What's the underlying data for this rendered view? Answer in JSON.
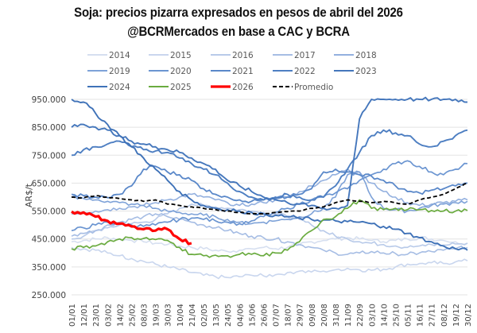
{
  "chart_data": {
    "type": "line",
    "title": "Soja: precios pizarra  expresados en pesos de abril del 2026",
    "subtitle": "@BCRMercados en base a CAC y BCRA",
    "xlabel": "",
    "ylabel": "AR$/t",
    "ylim": [
      250000,
      950000
    ],
    "yticks": [
      250000,
      350000,
      450000,
      550000,
      650000,
      750000,
      850000,
      950000
    ],
    "ytick_labels": [
      "250.000",
      "350.000",
      "450.000",
      "550.000",
      "650.000",
      "750.000",
      "850.000",
      "950.000"
    ],
    "grid": true,
    "legend_position": "top",
    "categories": [
      "01/01",
      "12/01",
      "23/01",
      "03/02",
      "14/02",
      "25/02",
      "08/03",
      "19/03",
      "30/03",
      "10/04",
      "21/04",
      "02/05",
      "13/05",
      "24/05",
      "04/06",
      "15/06",
      "26/06",
      "07/07",
      "18/07",
      "29/07",
      "09/08",
      "20/08",
      "31/08",
      "11/09",
      "22/09",
      "03/10",
      "14/10",
      "25/10",
      "05/11",
      "16/11",
      "27/11",
      "08/12",
      "19/12",
      "30/12"
    ],
    "series": [
      {
        "name": "2014",
        "color": "#d6dff0",
        "width": 1.6,
        "dash": "",
        "values": [
          440000,
          445000,
          450000,
          455000,
          450000,
          445000,
          440000,
          435000,
          430000,
          425000,
          420000,
          415000,
          410000,
          405000,
          410000,
          415000,
          420000,
          415000,
          420000,
          430000,
          440000,
          445000,
          450000,
          455000,
          450000,
          445000,
          440000,
          445000,
          450000,
          455000,
          450000,
          445000,
          440000,
          435000
        ]
      },
      {
        "name": "2015",
        "color": "#c9d6ee",
        "width": 1.6,
        "dash": "",
        "values": [
          420000,
          415000,
          410000,
          400000,
          390000,
          380000,
          370000,
          360000,
          350000,
          340000,
          330000,
          320000,
          315000,
          312000,
          315000,
          320000,
          318000,
          322000,
          330000,
          335000,
          332000,
          335000,
          340000,
          345000,
          340000,
          338000,
          342000,
          350000,
          360000,
          362000,
          365000,
          362000,
          368000,
          372000
        ]
      },
      {
        "name": "2016",
        "color": "#b8cae9",
        "width": 1.6,
        "dash": "",
        "values": [
          450000,
          460000,
          480000,
          490000,
          500000,
          505000,
          510000,
          520000,
          540000,
          560000,
          575000,
          570000,
          565000,
          560000,
          555000,
          550000,
          545000,
          540000,
          530000,
          520000,
          500000,
          480000,
          460000,
          450000,
          440000,
          435000,
          430000,
          425000,
          420000,
          425000,
          430000,
          428000,
          432000,
          435000
        ]
      },
      {
        "name": "2017",
        "color": "#a6bde4",
        "width": 1.6,
        "dash": "",
        "values": [
          460000,
          470000,
          480000,
          500000,
          510000,
          520000,
          530000,
          540000,
          530000,
          520000,
          510000,
          500000,
          490000,
          480000,
          470000,
          460000,
          455000,
          450000,
          440000,
          430000,
          420000,
          410000,
          400000,
          395000,
          400000,
          405000,
          400000,
          398000,
          395000,
          400000,
          405000,
          410000,
          415000,
          420000
        ]
      },
      {
        "name": "2018",
        "color": "#93b0df",
        "width": 1.6,
        "dash": "",
        "values": [
          540000,
          545000,
          550000,
          555000,
          560000,
          565000,
          570000,
          580000,
          590000,
          600000,
          610000,
          600000,
          590000,
          580000,
          570000,
          575000,
          580000,
          590000,
          600000,
          620000,
          640000,
          660000,
          680000,
          700000,
          690000,
          650000,
          620000,
          600000,
          580000,
          570000,
          575000,
          580000,
          585000,
          590000
        ]
      },
      {
        "name": "2019",
        "color": "#7ea2d8",
        "width": 1.6,
        "dash": "",
        "values": [
          600000,
          595000,
          590000,
          585000,
          580000,
          575000,
          570000,
          560000,
          550000,
          545000,
          540000,
          535000,
          530000,
          520000,
          510000,
          505000,
          510000,
          515000,
          520000,
          530000,
          540000,
          560000,
          600000,
          680000,
          690000,
          600000,
          560000,
          555000,
          550000,
          560000,
          570000,
          575000,
          580000,
          585000
        ]
      },
      {
        "name": "2020",
        "color": "#6b95d1",
        "width": 1.7,
        "dash": "",
        "values": [
          480000,
          490000,
          500000,
          510000,
          505000,
          500000,
          495000,
          500000,
          510000,
          520000,
          525000,
          520000,
          515000,
          510000,
          505000,
          515000,
          530000,
          545000,
          560000,
          575000,
          590000,
          600000,
          615000,
          630000,
          660000,
          680000,
          700000,
          720000,
          730000,
          710000,
          690000,
          680000,
          700000,
          720000
        ]
      },
      {
        "name": "2021",
        "color": "#5a88c9",
        "width": 1.8,
        "dash": "",
        "values": [
          610000,
          605000,
          600000,
          598000,
          610000,
          640000,
          700000,
          710000,
          690000,
          680000,
          660000,
          630000,
          610000,
          600000,
          590000,
          585000,
          590000,
          595000,
          600000,
          610000,
          630000,
          690000,
          700000,
          690000,
          680000,
          675000,
          660000,
          640000,
          620000,
          615000,
          625000,
          630000,
          640000,
          650000
        ]
      },
      {
        "name": "2022",
        "color": "#4e7fc2",
        "width": 1.9,
        "dash": "",
        "values": [
          750000,
          770000,
          780000,
          790000,
          800000,
          780000,
          770000,
          765000,
          760000,
          740000,
          720000,
          700000,
          680000,
          650000,
          620000,
          600000,
          590000,
          600000,
          610000,
          600000,
          590000,
          600000,
          640000,
          700000,
          760000,
          820000,
          840000,
          830000,
          820000,
          790000,
          780000,
          800000,
          820000,
          840000
        ]
      },
      {
        "name": "2023",
        "color": "#4577bc",
        "width": 1.9,
        "dash": "",
        "values": [
          850000,
          860000,
          850000,
          840000,
          820000,
          800000,
          790000,
          780000,
          770000,
          760000,
          740000,
          720000,
          700000,
          660000,
          640000,
          620000,
          600000,
          590000,
          580000,
          575000,
          570000,
          560000,
          560000,
          570000,
          880000,
          950000,
          950000,
          950000,
          950000,
          950000,
          950000,
          950000,
          950000,
          940000
        ]
      },
      {
        "name": "2024",
        "color": "#3f72b8",
        "width": 1.9,
        "dash": "",
        "values": [
          950000,
          940000,
          900000,
          860000,
          820000,
          780000,
          740000,
          700000,
          660000,
          620000,
          590000,
          570000,
          560000,
          555000,
          550000,
          545000,
          540000,
          535000,
          530000,
          525000,
          520000,
          518000,
          515000,
          512000,
          510000,
          505000,
          495000,
          485000,
          470000,
          455000,
          440000,
          425000,
          415000,
          410000
        ]
      },
      {
        "name": "2025",
        "color": "#6aab3f",
        "width": 1.7,
        "dash": "",
        "values": [
          415000,
          420000,
          425000,
          440000,
          450000,
          455000,
          452000,
          448000,
          445000,
          420000,
          395000,
          390000,
          392000,
          390000,
          395000,
          395000,
          390000,
          400000,
          410000,
          440000,
          480000,
          520000,
          530000,
          560000,
          590000,
          560000,
          555000,
          560000,
          555000,
          555000,
          552000,
          550000,
          550000,
          552000
        ]
      },
      {
        "name": "2026",
        "color": "#ff0000",
        "width": 3.2,
        "dash": "",
        "values": [
          548000,
          545000,
          530000,
          515000,
          505000,
          495000,
          485000,
          480000,
          485000,
          450000,
          435000
        ]
      },
      {
        "name": "Promedio",
        "color": "#000000",
        "width": 1.8,
        "dash": "5,3",
        "values": [
          600000,
          598000,
          605000,
          600000,
          595000,
          590000,
          585000,
          590000,
          575000,
          570000,
          565000,
          560000,
          555000,
          550000,
          545000,
          540000,
          540000,
          545000,
          548000,
          550000,
          560000,
          565000,
          580000,
          590000,
          585000,
          580000,
          585000,
          580000,
          575000,
          590000,
          600000,
          610000,
          630000,
          650000
        ]
      }
    ]
  }
}
